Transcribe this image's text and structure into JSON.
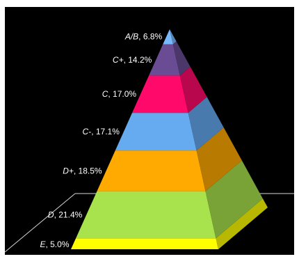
{
  "chart_data": {
    "type": "pyramid",
    "categories": [
      "E",
      "D",
      "D+",
      "C-",
      "C",
      "C+",
      "A/B"
    ],
    "values": [
      5.0,
      21.4,
      18.5,
      17.1,
      17.0,
      14.2,
      6.8
    ],
    "value_labels": [
      "5.0%",
      "21.4%",
      "18.5%",
      "17.1%",
      "17.0%",
      "14.2%",
      "6.8%"
    ],
    "colors": [
      "#ffff00",
      "#a8e24c",
      "#ffaa00",
      "#66aaf0",
      "#ff0a6a",
      "#6a4c95",
      "#77b9ff"
    ],
    "order": "bottom-to-top",
    "background": "#000000",
    "legend": "none"
  }
}
